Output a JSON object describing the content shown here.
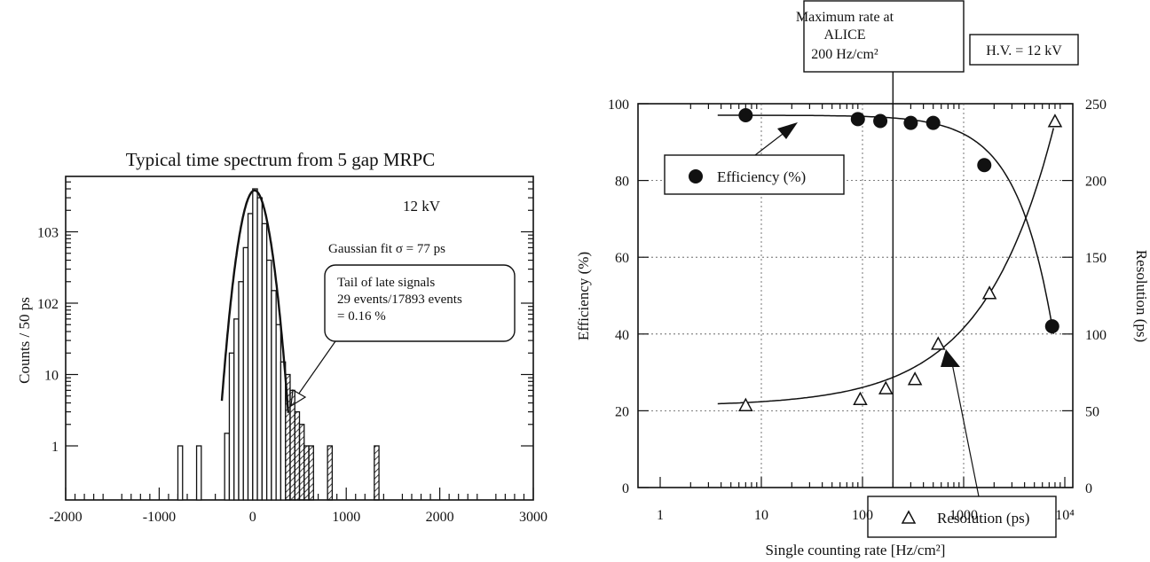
{
  "chart_data": [
    {
      "type": "histogram",
      "title": "Typical time spectrum from 5 gap MRPC",
      "xlabel": "",
      "ylabel": "Counts / 50 ps",
      "xlim": [
        -2000,
        3000
      ],
      "y_scale": "log",
      "x_ticks": [
        "-2000",
        "-1000",
        "0",
        "1000",
        "2000",
        "3000"
      ],
      "y_ticks": [
        "1",
        "10",
        "102",
        "103"
      ],
      "annotations": {
        "voltage": "12 kV",
        "fit": "Gaussian fit  σ = 77 ps",
        "tail_line1": "Tail of late signals",
        "tail_line2": "29 events/17893 events",
        "tail_line3": "= 0.16 %"
      },
      "bin_width": 50,
      "main_bins": [
        {
          "x": -300,
          "count": 1.5
        },
        {
          "x": -250,
          "count": 20
        },
        {
          "x": -200,
          "count": 60
        },
        {
          "x": -150,
          "count": 200
        },
        {
          "x": -100,
          "count": 600
        },
        {
          "x": -50,
          "count": 1800
        },
        {
          "x": 0,
          "count": 4000
        },
        {
          "x": 50,
          "count": 3000
        },
        {
          "x": 100,
          "count": 1300
        },
        {
          "x": 150,
          "count": 400
        },
        {
          "x": 200,
          "count": 150
        },
        {
          "x": 250,
          "count": 50
        },
        {
          "x": 300,
          "count": 15
        }
      ],
      "tail_bins": [
        {
          "x": 350,
          "count": 10
        },
        {
          "x": 400,
          "count": 6
        },
        {
          "x": 450,
          "count": 3
        },
        {
          "x": 500,
          "count": 2
        },
        {
          "x": 550,
          "count": 1
        },
        {
          "x": 600,
          "count": 1
        },
        {
          "x": 800,
          "count": 1
        },
        {
          "x": 1300,
          "count": 1
        }
      ],
      "early_bins": [
        {
          "x": -800,
          "count": 1
        },
        {
          "x": -600,
          "count": 1
        }
      ]
    },
    {
      "type": "scatter",
      "xlabel": "Single counting rate [Hz/cm²]",
      "ylabel": "Efficiency (%)",
      "y2label": "Resolution (ps)",
      "x_scale": "log",
      "xlim": [
        1,
        10000
      ],
      "ylim": [
        0,
        100
      ],
      "y2lim": [
        0,
        250
      ],
      "x_ticks": [
        "1",
        "10",
        "100",
        "1000",
        "10⁴"
      ],
      "y_ticks": [
        "0",
        "20",
        "40",
        "60",
        "80",
        "100"
      ],
      "y2_ticks": [
        "0",
        "50",
        "100",
        "150",
        "200",
        "250"
      ],
      "grid": true,
      "annotations": {
        "max_rate_line1": "Maximum rate at",
        "max_rate_line2": "ALICE",
        "max_rate_line3": "200 Hz/cm²",
        "hv": "H.V. = 12 kV"
      },
      "max_rate_x": 200,
      "series": [
        {
          "name": "Efficiency (%)",
          "marker": "filled-circle",
          "axis": "left",
          "points": [
            [
              7,
              97
            ],
            [
              90,
              96
            ],
            [
              150,
              95.5
            ],
            [
              300,
              95
            ],
            [
              500,
              95
            ],
            [
              1600,
              84
            ],
            [
              7500,
              42
            ]
          ]
        },
        {
          "name": "Resolution (ps)",
          "marker": "open-triangle",
          "axis": "right",
          "points": [
            [
              7,
              53
            ],
            [
              95,
              57
            ],
            [
              170,
              64
            ],
            [
              330,
              70
            ],
            [
              560,
              93
            ],
            [
              1800,
              126
            ],
            [
              8000,
              238
            ]
          ]
        }
      ]
    }
  ]
}
